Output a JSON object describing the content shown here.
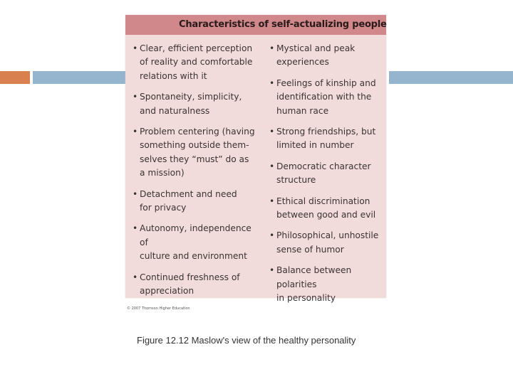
{
  "colors": {
    "accent_orange": "#d8804e",
    "accent_blue": "#95b5cf",
    "panel_bg": "#f2dcdb",
    "header_bg": "#d0888a"
  },
  "panel": {
    "title": "Characteristics of self-actualizing people",
    "left_items": [
      "Clear, efficient perception\nof reality and comfortable\nrelations with it",
      "Spontaneity, simplicity,\nand naturalness",
      "Problem centering (having\nsomething outside them-\nselves they “must” do as\na mission)",
      "Detachment and need\nfor privacy",
      "Autonomy, independence of\nculture and environment",
      "Continued freshness of\nappreciation"
    ],
    "right_items": [
      "Mystical and peak\nexperiences",
      "Feelings of kinship and\nidentification with the\nhuman race",
      "Strong friendships, but\nlimited in number",
      "Democratic character\nstructure",
      "Ethical discrimination\nbetween good and evil",
      "Philosophical, unhostile\nsense of humor",
      "Balance between polarities\nin personality"
    ]
  },
  "copyright": "© 2007 Thomson Higher Education",
  "caption": "Figure 12.12  Maslow's view of the healthy personality"
}
